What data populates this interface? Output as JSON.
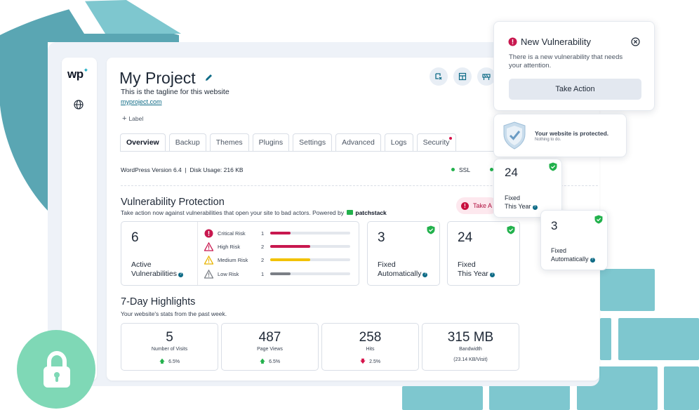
{
  "colors": {
    "accent": "#0e6b86",
    "danger": "#d6124a",
    "success": "#22b14c",
    "warning": "#f2c200",
    "muted": "#9ca3af",
    "bg_teal": "#7ec7cf",
    "lock_green": "#7fd8b6"
  },
  "sidebar": {
    "logo": "wp",
    "icons": [
      "globe-icon"
    ]
  },
  "project": {
    "title": "My Project",
    "tagline": "This is the tagline for this website",
    "url": "myproject.com",
    "label_button": "Label",
    "header_icons": [
      "staging-icon",
      "layout-icon",
      "maintenance-icon"
    ]
  },
  "tabs": [
    {
      "label": "Overview",
      "active": true
    },
    {
      "label": "Backup"
    },
    {
      "label": "Themes"
    },
    {
      "label": "Plugins"
    },
    {
      "label": "Settings"
    },
    {
      "label": "Advanced"
    },
    {
      "label": "Logs"
    },
    {
      "label": "Security",
      "badge": true
    }
  ],
  "meta": {
    "version": "WordPress Version 6.4",
    "separator": "|",
    "disk": "Disk Usage:  216 KB",
    "ssl": "SSL"
  },
  "vulnerability": {
    "title": "Vulnerability Protection",
    "subtitle": "Take action now against vulnerabilities that open your site to bad actors.  Powered by",
    "powered_by": "patchstack",
    "take_action": "Take A",
    "active": {
      "count": "6",
      "label_1": "Active",
      "label_2": "Vulnerabilities"
    },
    "risks": [
      {
        "label": "Critical Risk",
        "count": "1",
        "level": 0.25,
        "color": "#c8184f"
      },
      {
        "label": "High Risk",
        "count": "2",
        "level": 0.5,
        "color": "#c8184f"
      },
      {
        "label": "Medium Risk",
        "count": "2",
        "level": 0.5,
        "color": "#f2c200"
      },
      {
        "label": "Low Risk",
        "count": "1",
        "level": 0.25,
        "color": "#7b7f86"
      }
    ],
    "fixed_auto": {
      "count": "3",
      "label_1": "Fixed",
      "label_2": "Automatically"
    },
    "fixed_year": {
      "count": "24",
      "label_1": "Fixed",
      "label_2": "This Year"
    }
  },
  "highlights": {
    "title": "7-Day Highlights",
    "subtitle": "Your website's stats from the past week.",
    "stats": [
      {
        "value": "5",
        "label": "Number of Visits",
        "trend": "6.5%",
        "dir": "up"
      },
      {
        "value": "487",
        "label": "Page Views",
        "trend": "6.5%",
        "dir": "up"
      },
      {
        "value": "258",
        "label": "Hits",
        "trend": "2.5%",
        "dir": "down"
      },
      {
        "value": "315 MB",
        "label": "Bandwidth",
        "trend": "(23.14 KB/Visit)",
        "dir": "none"
      }
    ]
  },
  "popup_vuln": {
    "title": "New Vulnerability",
    "body_1": "There is a new vulnerability that needs",
    "body_2": "your attention.",
    "button": "Take Action"
  },
  "popup_protected": {
    "title": "Your website is protected.",
    "subtitle": "Nothing to do."
  },
  "float_year": {
    "count": "24",
    "label_1": "Fixed",
    "label_2": "This Year"
  },
  "float_auto": {
    "count": "3",
    "label_1": "Fixed",
    "label_2": "Automatically"
  }
}
